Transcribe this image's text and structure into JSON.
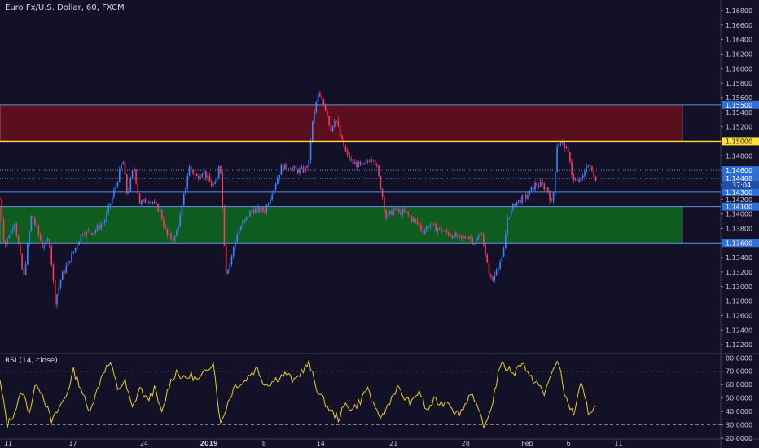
{
  "header": {
    "title": "Euro Fx/U.S. Dollar, 60, FXCM"
  },
  "colors": {
    "background": "#131127",
    "axis_text": "#c8c8d8",
    "candle_up": "#3a86ff",
    "candle_down": "#ff3a5c",
    "supply_zone": "#5a0f1e",
    "demand_zone": "#0e5c1e",
    "yellow_line": "#ffe13a",
    "level_line": "#5f8fe0",
    "label_bg": "#2f6fd6",
    "rsi_line": "#e8d01e"
  },
  "chart_data": [
    {
      "type": "candlestick",
      "title": "Euro Fx/U.S. Dollar, 60, FXCM",
      "ylim": [
        1.121,
        1.169
      ],
      "y_ticks": [
        "1.16800",
        "1.16600",
        "1.16400",
        "1.16200",
        "1.16000",
        "1.15800",
        "1.15600",
        "1.15400",
        "1.15200",
        "1.15000",
        "1.14800",
        "1.14600",
        "1.14400",
        "1.14200",
        "1.14000",
        "1.13800",
        "1.13600",
        "1.13400",
        "1.13200",
        "1.13000",
        "1.12800",
        "1.12600",
        "1.12400",
        "1.12200"
      ],
      "x_ticks": [
        "11",
        "17",
        "24",
        "2019",
        "8",
        "14",
        "21",
        "28",
        "Feb",
        "6",
        "11"
      ],
      "price_path": [
        [
          0,
          1.142
        ],
        [
          0.6,
          1.1355
        ],
        [
          2.0,
          1.139
        ],
        [
          3.2,
          1.131
        ],
        [
          4.3,
          1.14
        ],
        [
          5.8,
          1.1355
        ],
        [
          6.7,
          1.1365
        ],
        [
          7.5,
          1.128
        ],
        [
          8.4,
          1.1315
        ],
        [
          9.4,
          1.1335
        ],
        [
          11.2,
          1.1375
        ],
        [
          12.7,
          1.1375
        ],
        [
          14.2,
          1.139
        ],
        [
          15.8,
          1.144
        ],
        [
          16.7,
          1.1475
        ],
        [
          17.3,
          1.1425
        ],
        [
          18.2,
          1.1465
        ],
        [
          19.0,
          1.1415
        ],
        [
          20.3,
          1.142
        ],
        [
          21.7,
          1.1405
        ],
        [
          22.7,
          1.137
        ],
        [
          23.7,
          1.1365
        ],
        [
          24.6,
          1.14
        ],
        [
          25.7,
          1.1465
        ],
        [
          26.8,
          1.145
        ],
        [
          27.6,
          1.146
        ],
        [
          28.7,
          1.144
        ],
        [
          29.4,
          1.144
        ],
        [
          29.9,
          1.148
        ],
        [
          30.7,
          1.132
        ],
        [
          31.2,
          1.133
        ],
        [
          32.3,
          1.1375
        ],
        [
          34.2,
          1.1405
        ],
        [
          36.0,
          1.1405
        ],
        [
          37.2,
          1.1435
        ],
        [
          38.3,
          1.1465
        ],
        [
          39.4,
          1.1465
        ],
        [
          40.2,
          1.146
        ],
        [
          41.3,
          1.146
        ],
        [
          42.0,
          1.147
        ],
        [
          42.4,
          1.152
        ],
        [
          43.2,
          1.1565
        ],
        [
          44.3,
          1.1545
        ],
        [
          45.0,
          1.1515
        ],
        [
          45.6,
          1.1535
        ],
        [
          46.3,
          1.1505
        ],
        [
          47.2,
          1.148
        ],
        [
          48.0,
          1.147
        ],
        [
          49.3,
          1.1465
        ],
        [
          50.7,
          1.148
        ],
        [
          51.2,
          1.1465
        ],
        [
          51.9,
          1.143
        ],
        [
          52.5,
          1.1395
        ],
        [
          53.5,
          1.1405
        ],
        [
          55.3,
          1.14
        ],
        [
          56.9,
          1.1385
        ],
        [
          57.6,
          1.1375
        ],
        [
          58.2,
          1.1385
        ],
        [
          59.4,
          1.138
        ],
        [
          60.5,
          1.1375
        ],
        [
          61.7,
          1.137
        ],
        [
          62.7,
          1.1365
        ],
        [
          63.7,
          1.137
        ],
        [
          64.6,
          1.136
        ],
        [
          65.5,
          1.1375
        ],
        [
          66.1,
          1.1335
        ],
        [
          66.9,
          1.1305
        ],
        [
          67.5,
          1.1325
        ],
        [
          68.4,
          1.134
        ],
        [
          69.0,
          1.1395
        ],
        [
          70.0,
          1.1415
        ],
        [
          71.7,
          1.1425
        ],
        [
          72.7,
          1.144
        ],
        [
          73.5,
          1.144
        ],
        [
          74.4,
          1.1435
        ],
        [
          75.1,
          1.141
        ],
        [
          75.8,
          1.15
        ],
        [
          76.7,
          1.1495
        ],
        [
          77.5,
          1.1475
        ],
        [
          77.9,
          1.1445
        ],
        [
          79.1,
          1.1445
        ],
        [
          79.8,
          1.147
        ],
        [
          81.0,
          1.145
        ]
      ],
      "zones": [
        {
          "name": "supply",
          "from": 1.15,
          "to": 1.155
        },
        {
          "name": "demand",
          "from": 1.136,
          "to": 1.141
        }
      ],
      "levels": [
        {
          "price": 1.155,
          "label": "1.15500",
          "style": "solid",
          "color": "#5f8fe0"
        },
        {
          "price": 1.15,
          "label": "1.15000",
          "style": "solid",
          "color": "#ffe13a"
        },
        {
          "price": 1.146,
          "label": "1.14600",
          "style": "dotted",
          "color": "#5f8fe0"
        },
        {
          "price": 1.14488,
          "label": "1.14488",
          "style": "dotted",
          "color": "#5f8fe0"
        },
        {
          "price": 1.143,
          "label": "1.14300",
          "style": "solid",
          "color": "#5f8fe0"
        },
        {
          "price": 1.141,
          "label": "1.14100",
          "style": "solid",
          "color": "#5f8fe0"
        },
        {
          "price": 1.136,
          "label": "1.13600",
          "style": "solid",
          "color": "#5f8fe0"
        }
      ],
      "countdown_label": "37:04"
    },
    {
      "type": "line",
      "title": "RSI (14, close)",
      "ylim": [
        20,
        82
      ],
      "y_ticks": [
        "80.0000",
        "70.0000",
        "60.0000",
        "50.0000",
        "40.0000",
        "30.0000",
        "20.0000"
      ],
      "bands": [
        70,
        30
      ],
      "x_ticks": [
        "11",
        "17",
        "24",
        "2019",
        "8",
        "14",
        "21",
        "28",
        "Feb",
        "6",
        "11"
      ],
      "rsi_path": [
        [
          0,
          62
        ],
        [
          1,
          30
        ],
        [
          2,
          40
        ],
        [
          3,
          55
        ],
        [
          4,
          40
        ],
        [
          5,
          62
        ],
        [
          6,
          50
        ],
        [
          7,
          32
        ],
        [
          8,
          42
        ],
        [
          9,
          52
        ],
        [
          10,
          70
        ],
        [
          11,
          58
        ],
        [
          12,
          40
        ],
        [
          13,
          52
        ],
        [
          14,
          70
        ],
        [
          15,
          76
        ],
        [
          16,
          57
        ],
        [
          17,
          62
        ],
        [
          18,
          42
        ],
        [
          19,
          58
        ],
        [
          20,
          48
        ],
        [
          21,
          57
        ],
        [
          22,
          38
        ],
        [
          23,
          60
        ],
        [
          24,
          70
        ],
        [
          25,
          64
        ],
        [
          26,
          67
        ],
        [
          27,
          63
        ],
        [
          28,
          70
        ],
        [
          29,
          78
        ],
        [
          30,
          30
        ],
        [
          31,
          47
        ],
        [
          32,
          60
        ],
        [
          33,
          61
        ],
        [
          34,
          68
        ],
        [
          35,
          72
        ],
        [
          36,
          60
        ],
        [
          37,
          62
        ],
        [
          38,
          66
        ],
        [
          39,
          68
        ],
        [
          40,
          62
        ],
        [
          41,
          70
        ],
        [
          42,
          76
        ],
        [
          43,
          58
        ],
        [
          44,
          48
        ],
        [
          45,
          40
        ],
        [
          46,
          35
        ],
        [
          47,
          45
        ],
        [
          48,
          42
        ],
        [
          49,
          48
        ],
        [
          50,
          58
        ],
        [
          51,
          40
        ],
        [
          52,
          36
        ],
        [
          53,
          48
        ],
        [
          54,
          58
        ],
        [
          55,
          50
        ],
        [
          56,
          46
        ],
        [
          57,
          56
        ],
        [
          58,
          40
        ],
        [
          59,
          48
        ],
        [
          60,
          46
        ],
        [
          61,
          48
        ],
        [
          62,
          38
        ],
        [
          63,
          42
        ],
        [
          64,
          55
        ],
        [
          65,
          40
        ],
        [
          66,
          28
        ],
        [
          67,
          48
        ],
        [
          68,
          75
        ],
        [
          69,
          72
        ],
        [
          70,
          69
        ],
        [
          71,
          78
        ],
        [
          72,
          65
        ],
        [
          73,
          62
        ],
        [
          74,
          52
        ],
        [
          75,
          70
        ],
        [
          76,
          76
        ],
        [
          77,
          48
        ],
        [
          78,
          38
        ],
        [
          79,
          60
        ],
        [
          80,
          40
        ],
        [
          81,
          43
        ]
      ]
    }
  ]
}
